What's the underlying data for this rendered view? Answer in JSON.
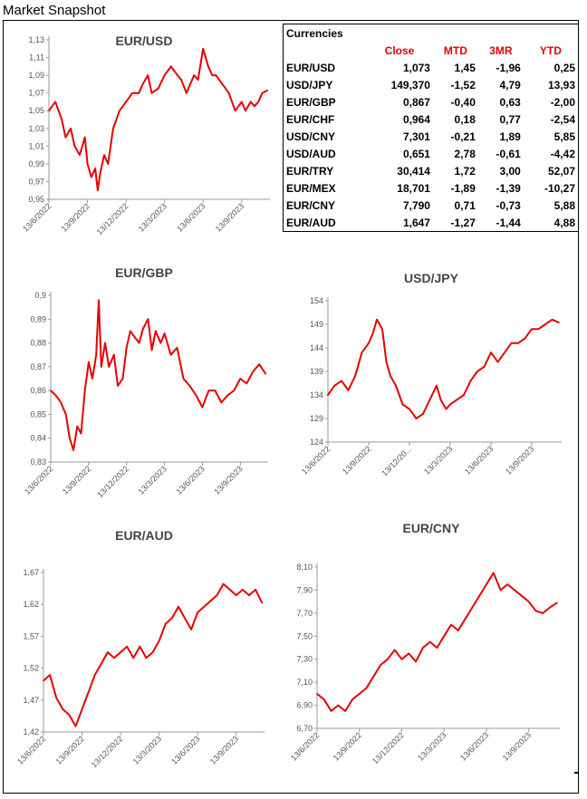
{
  "page_title": "Market Snapshot",
  "table": {
    "title": "Currencies",
    "columns": [
      "Close",
      "MTD",
      "3MR",
      "YTD"
    ],
    "rows": [
      {
        "pair": "EUR/USD",
        "close": "1,073",
        "mtd": "1,45",
        "m3r": "-1,96",
        "ytd": "0,25"
      },
      {
        "pair": "USD/JPY",
        "close": "149,370",
        "mtd": "-1,52",
        "m3r": "4,79",
        "ytd": "13,93"
      },
      {
        "pair": "EUR/GBP",
        "close": "0,867",
        "mtd": "-0,40",
        "m3r": "0,63",
        "ytd": "-2,00"
      },
      {
        "pair": "EUR/CHF",
        "close": "0,964",
        "mtd": "0,18",
        "m3r": "0,77",
        "ytd": "-2,54"
      },
      {
        "pair": "USD/CNY",
        "close": "7,301",
        "mtd": "-0,21",
        "m3r": "1,89",
        "ytd": "5,85"
      },
      {
        "pair": "USD/AUD",
        "close": "0,651",
        "mtd": "2,78",
        "m3r": "-0,61",
        "ytd": "-4,42"
      },
      {
        "pair": "EUR/TRY",
        "close": "30,414",
        "mtd": "1,72",
        "m3r": "3,00",
        "ytd": "52,07"
      },
      {
        "pair": "EUR/MEX",
        "close": "18,701",
        "mtd": "-1,89",
        "m3r": "-1,39",
        "ytd": "-10,27"
      },
      {
        "pair": "EUR/CNY",
        "close": "7,790",
        "mtd": "0,71",
        "m3r": "-0,73",
        "ytd": "5,88"
      },
      {
        "pair": "EUR/AUD",
        "close": "1,647",
        "mtd": "-1,27",
        "m3r": "-1,44",
        "ytd": "4,88"
      }
    ]
  },
  "colors": {
    "series": "#e60000",
    "table_header": "#e60000"
  },
  "chart_data": [
    {
      "id": "eurusd",
      "type": "line",
      "title": "EUR/USD",
      "ylim": [
        0.95,
        1.13
      ],
      "yticks": [
        "0,95",
        "0,97",
        "0,99",
        "1,01",
        "1,03",
        "1,05",
        "1,07",
        "1,09",
        "1,11",
        "1,13"
      ],
      "xticks": [
        "13/6/2022",
        "13/9/2022",
        "13/12/2022",
        "13/3/2023",
        "13/6/2023",
        "13/9/2023"
      ],
      "x_range": [
        0,
        17.2
      ],
      "series": [
        {
          "x": [
            0,
            0.5,
            1,
            1.3,
            1.7,
            2,
            2.4,
            2.8,
            3,
            3.3,
            3.6,
            3.8,
            4,
            4.3,
            4.6,
            5,
            5.5,
            6,
            6.5,
            7,
            7.3,
            7.7,
            8,
            8.5,
            9,
            9.5,
            10,
            10.3,
            10.7,
            11,
            11.3,
            11.6,
            12,
            12.4,
            12.7,
            13,
            13.5,
            14,
            14.5,
            15,
            15.3,
            15.7,
            16,
            16.3,
            16.6,
            17
          ],
          "values": [
            1.05,
            1.06,
            1.04,
            1.02,
            1.03,
            1.01,
            1.0,
            1.02,
            0.99,
            0.975,
            0.985,
            0.96,
            0.98,
            1.0,
            0.99,
            1.03,
            1.05,
            1.06,
            1.07,
            1.07,
            1.08,
            1.09,
            1.07,
            1.075,
            1.09,
            1.1,
            1.09,
            1.085,
            1.07,
            1.08,
            1.09,
            1.085,
            1.12,
            1.1,
            1.09,
            1.09,
            1.08,
            1.07,
            1.05,
            1.06,
            1.05,
            1.06,
            1.055,
            1.06,
            1.07,
            1.073
          ]
        }
      ]
    },
    {
      "id": "eurgbp",
      "type": "line",
      "title": "EUR/GBP",
      "ylim": [
        0.83,
        0.9
      ],
      "yticks": [
        "0,83",
        "0,84",
        "0,85",
        "0,86",
        "0,87",
        "0,88",
        "0,89",
        "0,9"
      ],
      "xticks": [
        "13/6/2022",
        "13/9/2022",
        "13/12/2022",
        "13/3/2023",
        "13/6/2023",
        "13/9/2023"
      ],
      "x_range": [
        0,
        17.2
      ],
      "series": [
        {
          "x": [
            0,
            0.4,
            0.8,
            1.2,
            1.5,
            1.8,
            2.1,
            2.4,
            2.7,
            3,
            3.3,
            3.6,
            3.8,
            4,
            4.3,
            4.6,
            5,
            5.3,
            5.7,
            6,
            6.3,
            6.7,
            7,
            7.3,
            7.7,
            8,
            8.3,
            8.7,
            9,
            9.5,
            10,
            10.5,
            11,
            11.5,
            12,
            12.5,
            13,
            13.5,
            14,
            14.5,
            15,
            15.5,
            16,
            16.5,
            17
          ],
          "values": [
            0.86,
            0.858,
            0.855,
            0.85,
            0.84,
            0.835,
            0.845,
            0.842,
            0.86,
            0.872,
            0.865,
            0.875,
            0.898,
            0.87,
            0.88,
            0.87,
            0.875,
            0.862,
            0.865,
            0.878,
            0.885,
            0.882,
            0.88,
            0.886,
            0.89,
            0.877,
            0.885,
            0.88,
            0.884,
            0.875,
            0.878,
            0.865,
            0.862,
            0.858,
            0.853,
            0.86,
            0.86,
            0.855,
            0.858,
            0.86,
            0.865,
            0.863,
            0.868,
            0.871,
            0.867
          ]
        }
      ]
    },
    {
      "id": "usdjpy",
      "type": "line",
      "title": "USD/JPY",
      "ylim": [
        124,
        154
      ],
      "yticks": [
        "124",
        "129",
        "134",
        "139",
        "144",
        "149",
        "154"
      ],
      "xticks": [
        "13/6/2022",
        "13/9/2022",
        "13/12/20...",
        "13/3/2023",
        "13/6/2023",
        "13/9/2023"
      ],
      "x_range": [
        0,
        17.2
      ],
      "series": [
        {
          "x": [
            0,
            0.5,
            1,
            1.5,
            2,
            2.5,
            3,
            3.3,
            3.6,
            4,
            4.3,
            4.6,
            5,
            5.5,
            6,
            6.5,
            7,
            7.5,
            8,
            8.3,
            8.7,
            9,
            9.5,
            10,
            10.5,
            11,
            11.5,
            12,
            12.5,
            13,
            13.5,
            14,
            14.5,
            15,
            15.5,
            16,
            16.5,
            17
          ],
          "values": [
            134,
            136,
            137,
            135,
            138,
            143,
            145,
            147,
            150,
            148,
            141,
            138,
            136,
            132,
            131,
            129,
            130,
            133,
            136,
            133,
            131,
            132,
            133,
            134,
            137,
            139,
            140,
            143,
            141,
            143,
            145,
            145,
            146,
            148,
            148,
            149,
            150,
            149.37
          ]
        }
      ]
    },
    {
      "id": "euraud",
      "type": "line",
      "title": "EUR/AUD",
      "ylim": [
        1.42,
        1.7
      ],
      "yticks": [
        "1,42",
        "1,47",
        "1,52",
        "1,57",
        "1,62",
        "1,67"
      ],
      "xticks": [
        "13/6/2022",
        "13/9/2022",
        "13/12/2022",
        "13/3/2023",
        "13/6/2023",
        "13/9/2023"
      ],
      "x_range": [
        0,
        17.2
      ],
      "series": [
        {
          "x": [
            0,
            0.5,
            1,
            1.5,
            2,
            2.5,
            3,
            3.5,
            4,
            4.5,
            5,
            5.5,
            6,
            6.5,
            7,
            7.5,
            8,
            8.5,
            9,
            9.5,
            10,
            10.5,
            11,
            11.5,
            12,
            12.5,
            13,
            13.5,
            14,
            14.5,
            15,
            15.5,
            16,
            16.5,
            17
          ],
          "values": [
            1.51,
            1.52,
            1.48,
            1.46,
            1.45,
            1.43,
            1.46,
            1.49,
            1.52,
            1.54,
            1.56,
            1.55,
            1.56,
            1.57,
            1.55,
            1.57,
            1.55,
            1.56,
            1.58,
            1.61,
            1.62,
            1.64,
            1.62,
            1.6,
            1.63,
            1.64,
            1.65,
            1.66,
            1.68,
            1.67,
            1.66,
            1.67,
            1.66,
            1.67,
            1.647
          ]
        }
      ]
    },
    {
      "id": "eurcny",
      "type": "line",
      "title": "EUR/CNY",
      "ylim": [
        6.7,
        8.1
      ],
      "yticks": [
        "6,70",
        "6,90",
        "7,10",
        "7,30",
        "7,50",
        "7,70",
        "7,90",
        "8,10"
      ],
      "xticks": [
        "13/6/2022",
        "13/9/2022",
        "13/12/2022",
        "13/3/2023",
        "13/6/2023",
        "13/9/2023"
      ],
      "x_range": [
        0,
        17.2
      ],
      "series": [
        {
          "x": [
            0,
            0.5,
            1,
            1.5,
            2,
            2.5,
            3,
            3.5,
            4,
            4.5,
            5,
            5.5,
            6,
            6.5,
            7,
            7.5,
            8,
            8.5,
            9,
            9.5,
            10,
            10.5,
            11,
            11.5,
            12,
            12.5,
            13,
            13.5,
            14,
            14.5,
            15,
            15.5,
            16,
            16.5,
            17
          ],
          "values": [
            7.0,
            6.95,
            6.85,
            6.9,
            6.85,
            6.95,
            7.0,
            7.05,
            7.15,
            7.25,
            7.3,
            7.38,
            7.3,
            7.35,
            7.28,
            7.4,
            7.45,
            7.4,
            7.5,
            7.6,
            7.55,
            7.65,
            7.75,
            7.85,
            7.95,
            8.05,
            7.9,
            7.95,
            7.9,
            7.85,
            7.8,
            7.72,
            7.7,
            7.75,
            7.79
          ]
        }
      ]
    }
  ]
}
